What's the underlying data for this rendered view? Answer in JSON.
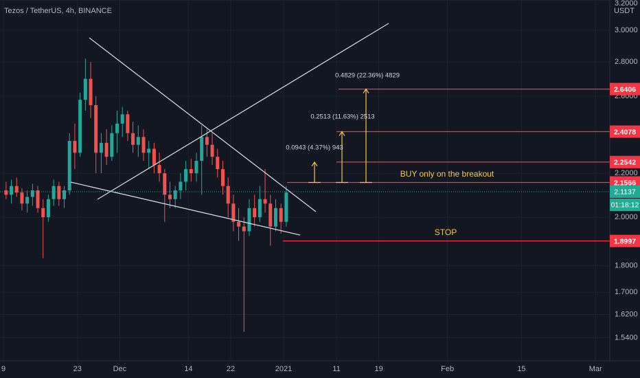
{
  "header": {
    "title": "Tezos / TetherUS, 4h, BINANCE"
  },
  "chart_data": {
    "type": "candlestick",
    "log_scale": true,
    "up_color": "#26a69a",
    "down_color": "#ef5350",
    "x": [
      0,
      1,
      2,
      3,
      4,
      5,
      6,
      7,
      8,
      9,
      10,
      11,
      12,
      13,
      14,
      15,
      16,
      17,
      18,
      19,
      20,
      21,
      22,
      23,
      24,
      25,
      26,
      27,
      28,
      29,
      30,
      31,
      32,
      33,
      34,
      35,
      36,
      37,
      38,
      39,
      40,
      41,
      42,
      43,
      44,
      45,
      46,
      47,
      48,
      49,
      50,
      51,
      52,
      53
    ],
    "open": [
      2.12,
      2.1,
      2.14,
      2.11,
      2.06,
      2.09,
      2.12,
      2.04,
      2.0,
      2.08,
      2.14,
      2.08,
      2.12,
      2.36,
      2.3,
      2.58,
      2.7,
      2.55,
      2.3,
      2.35,
      2.28,
      2.4,
      2.45,
      2.5,
      2.4,
      2.34,
      2.38,
      2.3,
      2.32,
      2.24,
      2.2,
      2.1,
      2.08,
      2.12,
      2.16,
      2.22,
      2.2,
      2.26,
      2.38,
      2.34,
      2.28,
      2.22,
      2.14,
      2.06,
      1.98,
      1.96,
      1.94,
      2.04,
      2.0,
      2.08,
      2.06,
      1.96,
      2.04,
      1.98
    ],
    "high": [
      2.16,
      2.17,
      2.18,
      2.13,
      2.12,
      2.15,
      2.14,
      2.08,
      2.1,
      2.17,
      2.16,
      2.14,
      2.4,
      2.45,
      2.62,
      2.82,
      2.8,
      2.6,
      2.4,
      2.42,
      2.44,
      2.52,
      2.54,
      2.52,
      2.46,
      2.44,
      2.42,
      2.36,
      2.35,
      2.3,
      2.22,
      2.16,
      2.14,
      2.2,
      2.26,
      2.27,
      2.3,
      2.44,
      2.42,
      2.4,
      2.32,
      2.26,
      2.18,
      2.1,
      2.04,
      2.0,
      2.08,
      2.1,
      2.14,
      2.22,
      2.1,
      2.08,
      2.06,
      2.14
    ],
    "low": [
      2.08,
      2.06,
      2.09,
      2.03,
      2.02,
      2.05,
      2.02,
      1.83,
      1.98,
      2.05,
      2.05,
      2.04,
      2.1,
      2.22,
      2.28,
      2.52,
      2.48,
      2.2,
      2.2,
      2.24,
      2.26,
      2.3,
      2.38,
      2.36,
      2.3,
      2.28,
      2.26,
      2.22,
      2.2,
      2.16,
      1.98,
      2.04,
      2.04,
      2.08,
      2.12,
      2.16,
      2.16,
      2.1,
      2.28,
      2.24,
      2.18,
      2.1,
      2.0,
      1.94,
      1.9,
      1.56,
      1.92,
      1.96,
      1.98,
      2.02,
      1.88,
      1.94,
      1.93,
      1.96
    ],
    "close": [
      2.1,
      2.14,
      2.11,
      2.06,
      2.09,
      2.12,
      2.04,
      2.0,
      2.08,
      2.14,
      2.08,
      2.12,
      2.36,
      2.3,
      2.58,
      2.7,
      2.55,
      2.3,
      2.35,
      2.28,
      2.4,
      2.45,
      2.5,
      2.4,
      2.34,
      2.38,
      2.3,
      2.32,
      2.24,
      2.2,
      2.1,
      2.08,
      2.12,
      2.16,
      2.22,
      2.2,
      2.26,
      2.38,
      2.34,
      2.28,
      2.22,
      2.14,
      2.06,
      1.98,
      1.96,
      1.94,
      2.04,
      2.0,
      2.08,
      2.06,
      1.96,
      2.04,
      1.98,
      2.11
    ],
    "ylim": [
      1.465,
      3.203
    ],
    "yticks": [
      {
        "value": 3.2,
        "label": "3.2000"
      },
      {
        "value": 3.0,
        "label": "3.0000"
      },
      {
        "value": 2.8,
        "label": "2.8000"
      },
      {
        "value": 2.6,
        "label": "2.6000"
      },
      {
        "value": 2.2,
        "label": "2.2000"
      },
      {
        "value": 2.0,
        "label": "2.0000"
      },
      {
        "value": 1.8,
        "label": "1.8000"
      },
      {
        "value": 1.7,
        "label": "1.7000"
      },
      {
        "value": 1.62,
        "label": "1.6200"
      },
      {
        "value": 1.54,
        "label": "1.5400"
      }
    ],
    "y_unit": "USDT",
    "xlim": [
      -0.65,
      114.7
    ],
    "xticks": [
      {
        "value": 0,
        "label": "9"
      },
      {
        "value": 14,
        "label": "23"
      },
      {
        "value": 22,
        "label": "Dec"
      },
      {
        "value": 35,
        "label": "14"
      },
      {
        "value": 43,
        "label": "22"
      },
      {
        "value": 53,
        "label": "2021"
      },
      {
        "value": 63,
        "label": "11"
      },
      {
        "value": 71,
        "label": "19"
      },
      {
        "value": 84,
        "label": "Feb"
      },
      {
        "value": 98,
        "label": "15"
      },
      {
        "value": 112,
        "label": "Mar"
      }
    ],
    "levels": [
      2.6406,
      2.4078,
      2.2542,
      2.1566,
      1.8997
    ],
    "level_color": "#f23645",
    "current_price": 2.1137,
    "current_color": "#22ab94",
    "countdown": "01:18:12",
    "measurements": [
      "0.4829 (22.36%) 4829",
      "0.2513 (11.63%) 2513",
      "0.0943 (4.37%) 943"
    ],
    "annotations": [
      "BUY only on the breakout",
      "STOP"
    ]
  }
}
